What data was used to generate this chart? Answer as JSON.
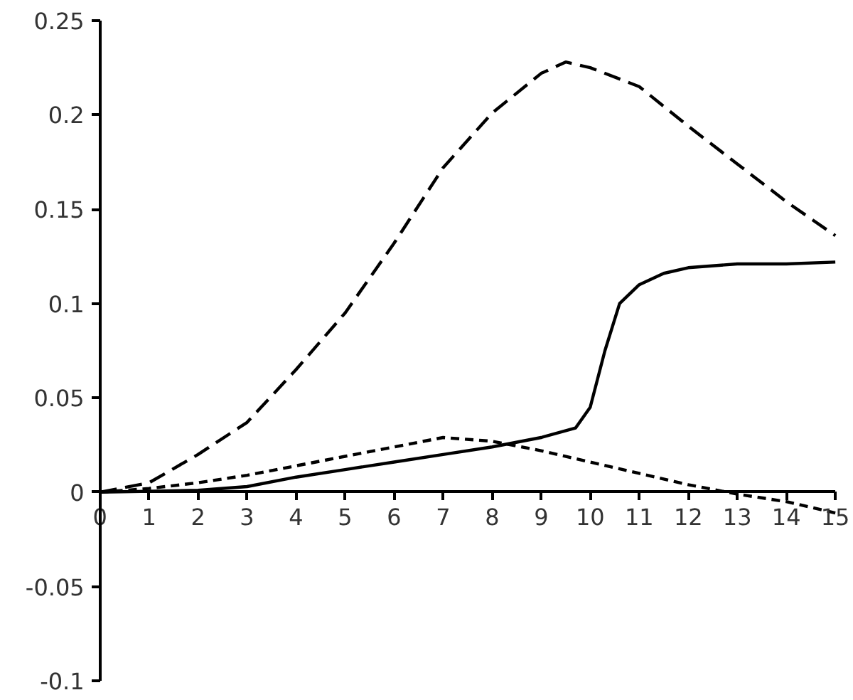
{
  "chart_data": {
    "type": "line",
    "xlim": [
      0,
      15
    ],
    "ylim": [
      -0.1,
      0.25
    ],
    "xticks": [
      0,
      1,
      2,
      3,
      4,
      5,
      6,
      7,
      8,
      9,
      10,
      11,
      12,
      13,
      14,
      15
    ],
    "yticks": [
      {
        "value": -0.1,
        "label": "-0.1"
      },
      {
        "value": -0.05,
        "label": "-0.05"
      },
      0,
      {
        "value": 0.05,
        "label": "0.05"
      },
      {
        "value": 0.1,
        "label": "0.1"
      },
      {
        "value": 0.15,
        "label": "0.15"
      },
      {
        "value": 0.2,
        "label": "0.2"
      },
      {
        "value": 0.25,
        "label": "0.25"
      }
    ],
    "grid": false,
    "marker": "none",
    "series": [
      {
        "color": "#000000",
        "line_style": "dashed",
        "x": [
          0,
          1,
          2,
          3,
          4,
          5,
          6,
          7,
          8,
          9,
          9.5,
          10,
          11,
          12,
          13,
          14,
          15
        ],
        "values": [
          0,
          0.005,
          0.02,
          0.037,
          0.065,
          0.095,
          0.132,
          0.172,
          0.201,
          0.222,
          0.228,
          0.225,
          0.215,
          0.194,
          0.174,
          0.154,
          0.136
        ]
      },
      {
        "color": "#000000",
        "line_style": "dotted",
        "x": [
          0,
          1,
          2,
          3,
          4,
          5,
          6,
          7,
          8,
          9,
          10,
          11,
          12,
          13,
          14,
          15
        ],
        "values": [
          0,
          0.002,
          0.005,
          0.009,
          0.014,
          0.019,
          0.024,
          0.029,
          0.027,
          0.022,
          0.016,
          0.01,
          0.004,
          -0.001,
          -0.005,
          -0.011
        ]
      },
      {
        "color": "#000000",
        "line_style": "solid",
        "x": [
          0,
          2,
          3,
          4,
          5,
          6,
          7,
          8,
          9,
          9.7,
          10,
          10.3,
          10.6,
          11,
          11.5,
          12,
          13,
          14,
          15
        ],
        "values": [
          0,
          0.001,
          0.003,
          0.008,
          0.012,
          0.016,
          0.02,
          0.024,
          0.029,
          0.034,
          0.045,
          0.075,
          0.1,
          0.11,
          0.116,
          0.119,
          0.121,
          0.121,
          0.122
        ]
      }
    ]
  }
}
